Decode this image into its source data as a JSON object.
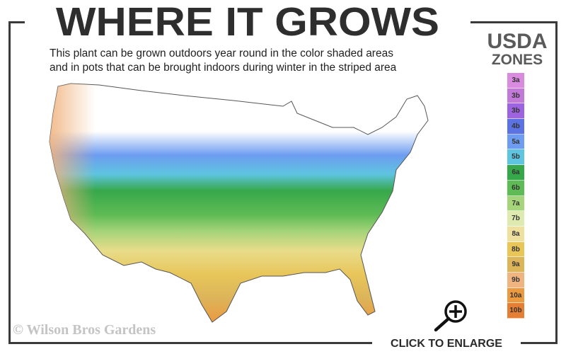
{
  "header": {
    "title": "WHERE IT GROWS",
    "subtitle_line1": "This plant can be grown outdoors year round in the color shaded areas",
    "subtitle_line2": "and in pots that can be brought indoors during winter in the striped area"
  },
  "legend": {
    "title_line1": "USDA",
    "title_line2": "ZONES",
    "zones": [
      {
        "label": "3a",
        "color": "#d98be0"
      },
      {
        "label": "3b",
        "color": "#c27ad8"
      },
      {
        "label": "3b",
        "color": "#9d63e0"
      },
      {
        "label": "4b",
        "color": "#5b72e3"
      },
      {
        "label": "5a",
        "color": "#6d9cf0"
      },
      {
        "label": "5b",
        "color": "#5ec4e0"
      },
      {
        "label": "6a",
        "color": "#36a84a"
      },
      {
        "label": "6b",
        "color": "#5fbb55"
      },
      {
        "label": "7a",
        "color": "#a5d47a"
      },
      {
        "label": "7b",
        "color": "#dfeab0"
      },
      {
        "label": "8a",
        "color": "#efe0a0"
      },
      {
        "label": "8b",
        "color": "#e8c65a"
      },
      {
        "label": "9a",
        "color": "#dcb45a"
      },
      {
        "label": "9b",
        "color": "#f0b480"
      },
      {
        "label": "10a",
        "color": "#ec9a40"
      },
      {
        "label": "10b",
        "color": "#e57f33"
      }
    ]
  },
  "map": {
    "region": "United States"
  },
  "footer": {
    "copyright": "© Wilson Bros Gardens",
    "enlarge_label": "CLICK TO ENLARGE",
    "enlarge_icon": "zoom-in-icon"
  }
}
